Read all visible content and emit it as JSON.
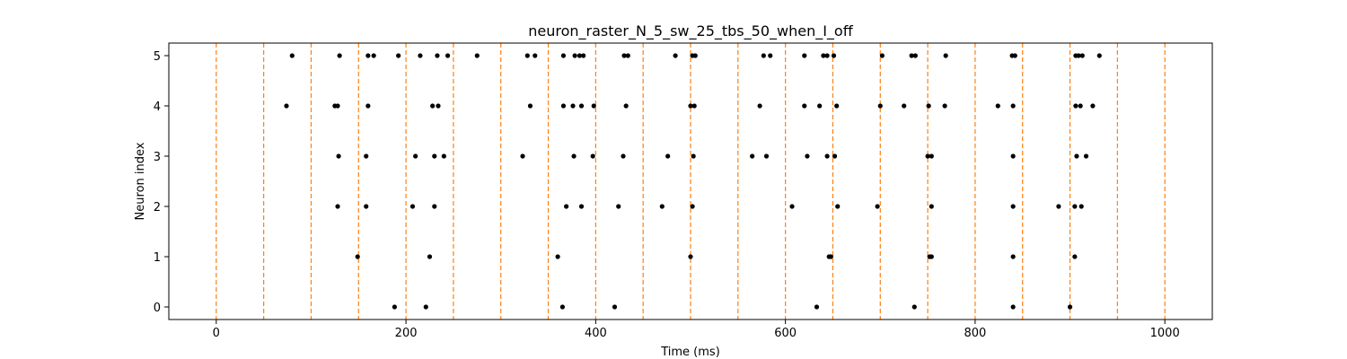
{
  "chart_data": {
    "type": "scatter",
    "title": "neuron_raster_N_5_sw_25_tbs_50_when_I_off",
    "xlabel": "Time (ms)",
    "ylabel": "Neuron index",
    "xlim": [
      -50,
      1050
    ],
    "ylim": [
      -0.25,
      5.25
    ],
    "xticks": [
      0,
      200,
      400,
      600,
      800,
      1000
    ],
    "yticks": [
      0,
      1,
      2,
      3,
      4,
      5
    ],
    "grid": false,
    "marker_color": "#000000",
    "vline_color": "#ff7f0e",
    "vlines": [
      0,
      50,
      100,
      150,
      200,
      250,
      300,
      350,
      400,
      450,
      500,
      550,
      600,
      650,
      700,
      750,
      800,
      850,
      900,
      950,
      1000
    ],
    "series": [
      {
        "neuron": 0,
        "x": [
          188,
          221,
          365,
          420,
          633,
          736,
          840,
          900
        ]
      },
      {
        "neuron": 1,
        "x": [
          149,
          225,
          360,
          500,
          646,
          648,
          752,
          754,
          840,
          905
        ]
      },
      {
        "neuron": 2,
        "x": [
          128,
          158,
          207,
          230,
          369,
          385,
          424,
          470,
          502,
          607,
          655,
          697,
          754,
          840,
          888,
          905,
          912
        ]
      },
      {
        "neuron": 3,
        "x": [
          129,
          158,
          210,
          230,
          240,
          323,
          377,
          397,
          429,
          476,
          503,
          565,
          580,
          623,
          644,
          652,
          750,
          754,
          840,
          907,
          917
        ]
      },
      {
        "neuron": 4,
        "x": [
          74,
          125,
          128,
          160,
          228,
          234,
          331,
          366,
          376,
          385,
          398,
          432,
          500,
          504,
          573,
          620,
          636,
          654,
          700,
          725,
          751,
          768,
          824,
          840,
          906,
          911,
          924
        ]
      },
      {
        "neuron": 5,
        "x": [
          80,
          130,
          160,
          166,
          192,
          215,
          233,
          244,
          275,
          328,
          336,
          366,
          378,
          383,
          387,
          430,
          434,
          484,
          502,
          505,
          577,
          584,
          620,
          640,
          644,
          651,
          702,
          733,
          737,
          769,
          839,
          842,
          906,
          909,
          913,
          931
        ]
      }
    ]
  }
}
